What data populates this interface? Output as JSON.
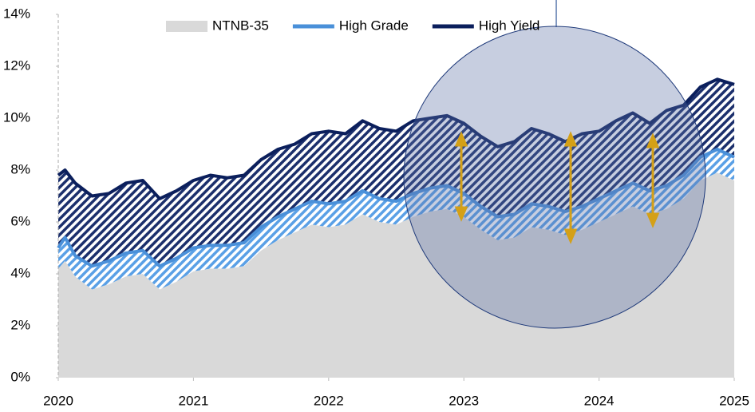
{
  "chart_data": {
    "type": "line",
    "x": [
      2020,
      2020.05,
      2020.125,
      2020.25,
      2020.375,
      2020.5,
      2020.625,
      2020.75,
      2020.875,
      2021,
      2021.125,
      2021.25,
      2021.375,
      2021.5,
      2021.625,
      2021.75,
      2021.875,
      2022,
      2022.125,
      2022.25,
      2022.375,
      2022.5,
      2022.625,
      2022.75,
      2022.875,
      2023,
      2023.125,
      2023.25,
      2023.375,
      2023.5,
      2023.625,
      2023.75,
      2023.875,
      2024,
      2024.125,
      2024.25,
      2024.375,
      2024.5,
      2024.625,
      2024.75,
      2024.875,
      2025
    ],
    "series": [
      {
        "name": "NTNB-35",
        "color": "#d9d9d9",
        "fill": "area",
        "values": [
          4.2,
          4.5,
          3.9,
          3.4,
          3.6,
          3.9,
          4.0,
          3.4,
          3.7,
          4.1,
          4.2,
          4.2,
          4.3,
          4.9,
          5.3,
          5.6,
          5.9,
          5.8,
          5.9,
          6.3,
          6.0,
          5.9,
          6.2,
          6.4,
          6.5,
          6.2,
          5.7,
          5.3,
          5.4,
          5.8,
          5.7,
          5.5,
          5.7,
          6.0,
          6.3,
          6.6,
          6.3,
          6.5,
          6.9,
          7.6,
          7.9,
          7.6
        ]
      },
      {
        "name": "High Grade",
        "color": "#4a90d9",
        "hatch": "#5aa0e6",
        "values": [
          5.0,
          5.4,
          4.7,
          4.3,
          4.5,
          4.8,
          4.9,
          4.3,
          4.6,
          5.0,
          5.1,
          5.1,
          5.2,
          5.8,
          6.2,
          6.5,
          6.8,
          6.7,
          6.8,
          7.2,
          6.9,
          6.8,
          7.1,
          7.3,
          7.4,
          7.1,
          6.6,
          6.2,
          6.3,
          6.7,
          6.6,
          6.4,
          6.6,
          6.9,
          7.2,
          7.5,
          7.2,
          7.4,
          7.8,
          8.5,
          8.8,
          8.5
        ]
      },
      {
        "name": "High Yield",
        "color": "#0b1f5c",
        "hatch": "#1b2f6c",
        "values": [
          7.8,
          8.0,
          7.5,
          7.0,
          7.1,
          7.5,
          7.6,
          6.9,
          7.2,
          7.6,
          7.8,
          7.7,
          7.8,
          8.4,
          8.8,
          9.0,
          9.4,
          9.5,
          9.4,
          9.9,
          9.6,
          9.5,
          9.9,
          10.0,
          10.1,
          9.8,
          9.3,
          8.9,
          9.1,
          9.6,
          9.4,
          9.1,
          9.4,
          9.5,
          9.9,
          10.2,
          9.8,
          10.3,
          10.5,
          11.2,
          11.5,
          11.3
        ]
      }
    ],
    "xlim": [
      2020,
      2025
    ],
    "xticks": [
      2020,
      2021,
      2022,
      2023,
      2024,
      2025
    ],
    "ylim": [
      0,
      14
    ],
    "yticks": [
      {
        "value": 0,
        "label": "0%"
      },
      {
        "value": 2,
        "label": "2%"
      },
      {
        "value": 4,
        "label": "4%"
      },
      {
        "value": 6,
        "label": "6%"
      },
      {
        "value": 8,
        "label": "8%"
      },
      {
        "value": 10,
        "label": "10%"
      },
      {
        "value": 12,
        "label": "12%"
      },
      {
        "value": 14,
        "label": "14%"
      }
    ],
    "legend": "top"
  }
}
